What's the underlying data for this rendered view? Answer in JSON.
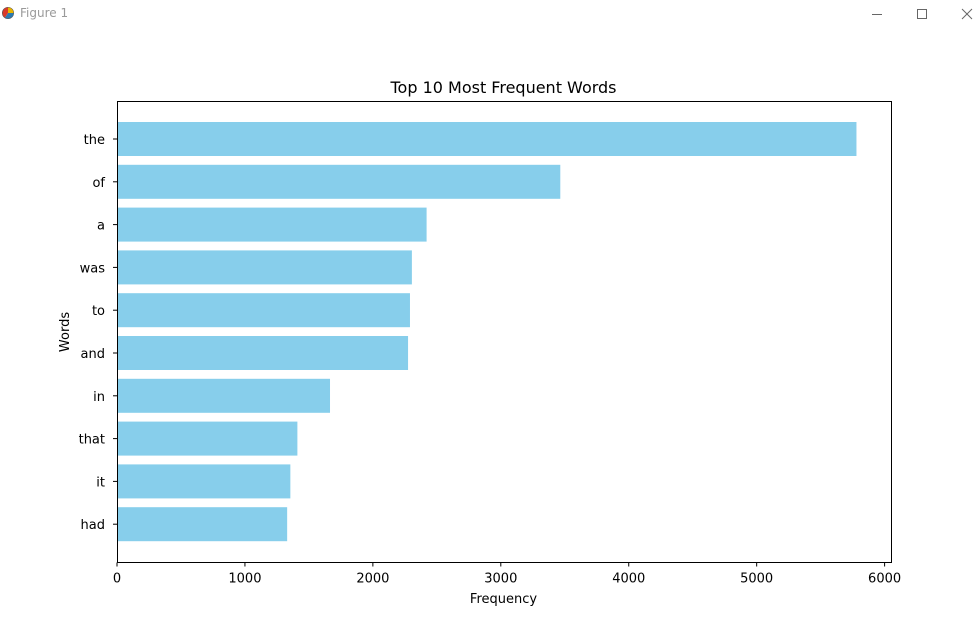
{
  "window": {
    "title": "Figure 1",
    "icons": {
      "app": "matplotlib-figure-icon",
      "minimize": "minimize-icon",
      "maximize": "maximize-icon",
      "close": "close-icon"
    }
  },
  "chart_data": {
    "type": "bar",
    "orientation": "horizontal",
    "title": "Top 10 Most Frequent Words",
    "xlabel": "Frequency",
    "ylabel": "Words",
    "categories": [
      "the",
      "of",
      "a",
      "was",
      "to",
      "and",
      "in",
      "that",
      "it",
      "had"
    ],
    "values": [
      5780,
      3465,
      2420,
      2305,
      2290,
      2275,
      1665,
      1410,
      1355,
      1330
    ],
    "xlim": [
      0,
      6050
    ],
    "xticks": [
      0,
      1000,
      2000,
      3000,
      4000,
      5000,
      6000
    ],
    "bar_color": "#87CEEB",
    "grid": false,
    "legend": "none"
  }
}
